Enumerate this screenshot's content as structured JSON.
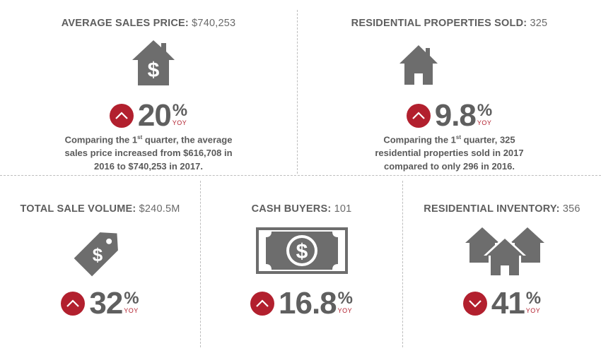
{
  "colors": {
    "accent": "#b2202e",
    "icon": "#6d6d6d",
    "text": "#5a5a5a"
  },
  "cards": [
    {
      "title": "AVERAGE SALES PRICE:",
      "value": "$740,253",
      "icon": "house-dollar-icon",
      "direction": "up",
      "percent": "20",
      "percent_sign": "%",
      "yoy": "YOY",
      "desc_a": "Comparing the 1",
      "desc_sup": "st",
      "desc_b": " quarter, the average",
      "desc_line2": "sales price increased from $616,708 in",
      "desc_line3": "2016 to $740,253 in 2017."
    },
    {
      "title": "RESIDENTIAL PROPERTIES SOLD:",
      "value": "325",
      "icon": "house-icon",
      "direction": "up",
      "percent": "9.8",
      "percent_sign": "%",
      "yoy": "YOY",
      "desc_a": "Comparing the 1",
      "desc_sup": "st",
      "desc_b": " quarter, 325",
      "desc_line2": "residential properties sold in 2017",
      "desc_line3": "compared to only 296 in 2016."
    },
    {
      "title": "TOTAL SALE VOLUME:",
      "value": "$240.5M",
      "icon": "price-tag-icon",
      "direction": "up",
      "percent": "32",
      "percent_sign": "%",
      "yoy": "YOY"
    },
    {
      "title": "CASH BUYERS:",
      "value": "101",
      "icon": "dollar-bill-icon",
      "direction": "up",
      "percent": "16.8",
      "percent_sign": "%",
      "yoy": "YOY"
    },
    {
      "title": "RESIDENTIAL INVENTORY:",
      "value": "356",
      "icon": "houses-icon",
      "direction": "down",
      "percent": "41",
      "percent_sign": "%",
      "yoy": "YOY"
    }
  ]
}
